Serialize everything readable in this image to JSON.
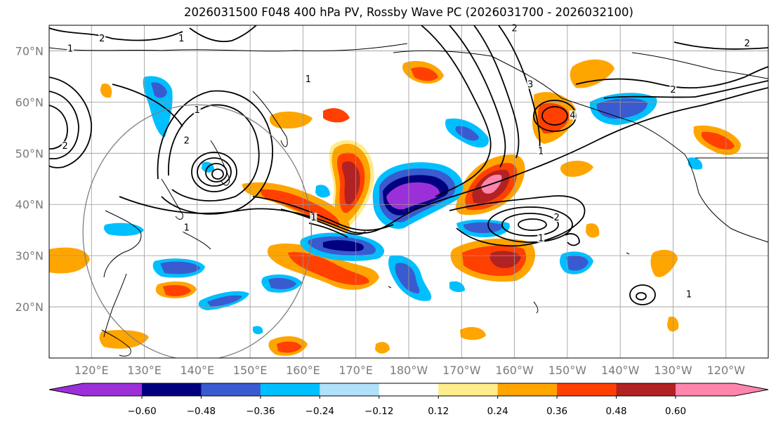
{
  "title": "2026031500 F048 400 hPa PV, Rossby Wave PC (2026031700 - 2026032100)",
  "map": {
    "lat_range": [
      10,
      75
    ],
    "lon_range_east": [
      112,
      248
    ],
    "lat_ticks": [
      {
        "lat": 70,
        "label": "70°N"
      },
      {
        "lat": 60,
        "label": "60°N"
      },
      {
        "lat": 50,
        "label": "50°N"
      },
      {
        "lat": 40,
        "label": "40°N"
      },
      {
        "lat": 30,
        "label": "30°N"
      },
      {
        "lat": 20,
        "label": "20°N"
      }
    ],
    "lon_ticks": [
      {
        "lon": 120,
        "label": "120°E"
      },
      {
        "lon": 130,
        "label": "130°E"
      },
      {
        "lon": 140,
        "label": "140°E"
      },
      {
        "lon": 150,
        "label": "150°E"
      },
      {
        "lon": 160,
        "label": "160°E"
      },
      {
        "lon": 170,
        "label": "170°E"
      },
      {
        "lon": 180,
        "label": "180°W"
      },
      {
        "lon": 190,
        "label": "170°W"
      },
      {
        "lon": 200,
        "label": "160°W"
      },
      {
        "lon": 210,
        "label": "150°W"
      },
      {
        "lon": 220,
        "label": "140°W"
      },
      {
        "lon": 230,
        "label": "130°W"
      },
      {
        "lon": 240,
        "label": "120°W"
      }
    ],
    "grid": true,
    "reference_circle": {
      "center_lon": 140,
      "center_lat": 40,
      "radius_deg": 30,
      "color": "#808080"
    },
    "pv_contour_labels": [
      {
        "text": "1",
        "lon": 116,
        "lat": 70
      },
      {
        "text": "2",
        "lon": 122,
        "lat": 72
      },
      {
        "text": "1",
        "lon": 137,
        "lat": 72
      },
      {
        "text": "1",
        "lon": 161,
        "lat": 64
      },
      {
        "text": "1",
        "lon": 140,
        "lat": 58
      },
      {
        "text": "2",
        "lon": 138,
        "lat": 52
      },
      {
        "text": "2",
        "lon": 115,
        "lat": 51
      },
      {
        "text": "1",
        "lon": 138,
        "lat": 35
      },
      {
        "text": "1",
        "lon": 162,
        "lat": 37
      },
      {
        "text": "2",
        "lon": 208,
        "lat": 37
      },
      {
        "text": "1",
        "lon": 205,
        "lat": 33
      },
      {
        "text": "3",
        "lon": 203,
        "lat": 63
      },
      {
        "text": "1",
        "lon": 205,
        "lat": 50
      },
      {
        "text": "4",
        "lon": 211,
        "lat": 57
      },
      {
        "text": "2",
        "lon": 230,
        "lat": 62
      },
      {
        "text": "2",
        "lon": 244,
        "lat": 71
      },
      {
        "text": "2",
        "lon": 200,
        "lat": 74
      },
      {
        "text": "1",
        "lon": 233,
        "lat": 22
      }
    ]
  },
  "colorbar": {
    "colors": [
      "#9b30d9",
      "#000080",
      "#3a5bd0",
      "#00bfff",
      "#b0e0fa",
      "#ffffff",
      "#ffec8b",
      "#ffa500",
      "#ff4000",
      "#b22222",
      "#ff85ac"
    ],
    "tick_labels": [
      "−0.60",
      "−0.48",
      "−0.36",
      "−0.24",
      "−0.12",
      "0.12",
      "0.24",
      "0.36",
      "0.48",
      "0.60"
    ],
    "extend": "both"
  },
  "anomaly_colors": {
    "neg_strong": "#9b30d9",
    "neg_vstrong": "#000080",
    "neg_mid": "#3a5bd0",
    "neg_weak": "#00bfff",
    "neg_faint": "#b0e0fa",
    "pos_faint": "#ffec8b",
    "pos_weak": "#ffa500",
    "pos_mid": "#ff4000",
    "pos_strong": "#b22222",
    "pos_vstrong": "#ff85ac"
  }
}
